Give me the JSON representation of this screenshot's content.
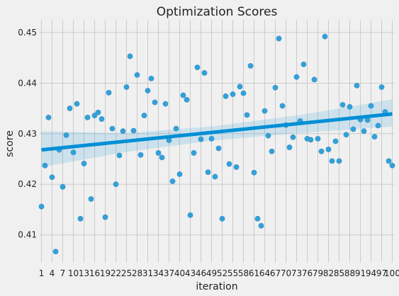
{
  "chart_data": {
    "type": "scatter",
    "title": "Optimization Scores",
    "xlabel": "iteration",
    "ylabel": "score",
    "xlim": [
      -0.5,
      99.5
    ],
    "ylim": [
      0.4045,
      0.4525
    ],
    "grid": true,
    "x_tick_labels": [
      "1",
      "4",
      "7",
      "10",
      "13",
      "16",
      "19",
      "22",
      "25",
      "28",
      "31",
      "34",
      "37",
      "40",
      "43",
      "46",
      "49",
      "52",
      "55",
      "58",
      "61",
      "64",
      "67",
      "70",
      "73",
      "76",
      "79",
      "82",
      "85",
      "88",
      "91",
      "94",
      "97",
      "100"
    ],
    "y_ticks": [
      0.41,
      0.42,
      0.43,
      0.44,
      0.45
    ],
    "y_tick_labels": [
      "0.41",
      "0.42",
      "0.43",
      "0.44",
      "0.45"
    ],
    "points": {
      "x": [
        1,
        2,
        3,
        4,
        5,
        6,
        7,
        8,
        9,
        10,
        11,
        12,
        13,
        14,
        15,
        16,
        17,
        18,
        19,
        20,
        21,
        22,
        23,
        24,
        25,
        26,
        27,
        28,
        29,
        30,
        31,
        32,
        33,
        34,
        35,
        36,
        37,
        38,
        39,
        40,
        41,
        42,
        43,
        44,
        45,
        46,
        47,
        48,
        49,
        50,
        51,
        52,
        53,
        54,
        55,
        56,
        57,
        58,
        59,
        60,
        61,
        62,
        63,
        64,
        65,
        66,
        67,
        68,
        69,
        70,
        71,
        72,
        73,
        74,
        75,
        76,
        77,
        78,
        79,
        80,
        81,
        82,
        83,
        84,
        85,
        86,
        87,
        88,
        89,
        90,
        91,
        92,
        93,
        94,
        95,
        96,
        97,
        98,
        99,
        100
      ],
      "y": [
        0.4156,
        0.4237,
        0.4332,
        0.4214,
        0.4067,
        0.4268,
        0.4195,
        0.4297,
        0.435,
        0.4263,
        0.4359,
        0.4132,
        0.4241,
        0.4332,
        0.4171,
        0.4336,
        0.4342,
        0.4329,
        0.4135,
        0.4381,
        0.431,
        0.42,
        0.4257,
        0.4305,
        0.4392,
        0.4453,
        0.4306,
        0.4416,
        0.4258,
        0.4336,
        0.4385,
        0.4409,
        0.4362,
        0.4262,
        0.4253,
        0.4359,
        0.4287,
        0.4206,
        0.431,
        0.422,
        0.4376,
        0.4367,
        0.4139,
        0.4262,
        0.4431,
        0.4289,
        0.442,
        0.4224,
        0.429,
        0.4215,
        0.4271,
        0.4132,
        0.4374,
        0.424,
        0.4378,
        0.4234,
        0.4393,
        0.438,
        0.4337,
        0.4434,
        0.4223,
        0.4132,
        0.4118,
        0.4345,
        0.4296,
        0.4265,
        0.4391,
        0.4488,
        0.4355,
        0.4317,
        0.4273,
        0.4293,
        0.4412,
        0.4325,
        0.4437,
        0.429,
        0.4288,
        0.4407,
        0.429,
        0.4265,
        0.4492,
        0.4269,
        0.4246,
        0.4285,
        0.4246,
        0.4357,
        0.4298,
        0.4353,
        0.4309,
        0.4395,
        0.4328,
        0.4305,
        0.4327,
        0.4355,
        0.4294,
        0.4316,
        0.4392,
        0.4343,
        0.4246,
        0.4237
      ]
    },
    "regression": {
      "x": [
        1,
        100
      ],
      "y": [
        0.4268,
        0.4339
      ]
    },
    "confidence_band": {
      "x": [
        1,
        25,
        50,
        75,
        100
      ],
      "upper": [
        0.4305,
        0.4301,
        0.4315,
        0.4338,
        0.4368
      ],
      "lower": [
        0.4234,
        0.4264,
        0.4287,
        0.4302,
        0.4314
      ]
    },
    "colors": {
      "background": "#f0f0f0",
      "grid": "#cbcbcb",
      "point": "#30a2da",
      "point_edge": "#3b8dc4",
      "line": "#008fd5",
      "band": "#008fd5",
      "text": "#222222"
    }
  }
}
